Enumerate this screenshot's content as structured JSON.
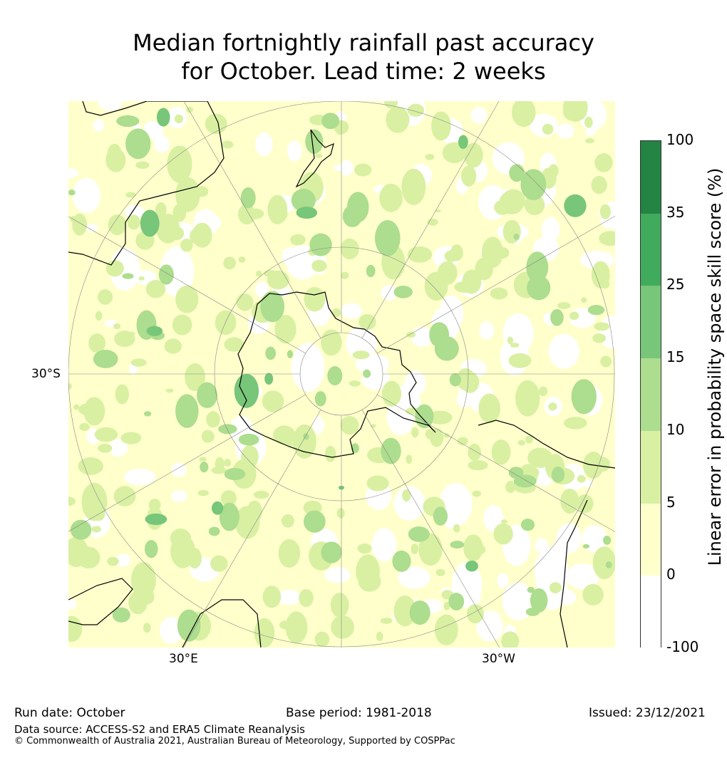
{
  "title": {
    "line1": "Median fortnightly rainfall past accuracy",
    "line2": "for October. Lead time: 2 weeks"
  },
  "map": {
    "labels": {
      "lat_30s": "30°S",
      "lon_30e": "30°E",
      "lon_30w": "30°W"
    },
    "projection": "south-polar-stereographic"
  },
  "colorbar": {
    "title": "Linear error in probability space skill score (%)",
    "ticks": [
      "-100",
      "0",
      "5",
      "10",
      "15",
      "25",
      "35",
      "100"
    ],
    "colors": [
      "#ffffff",
      "#ffffcc",
      "#d9f0a3",
      "#addd8e",
      "#78c679",
      "#41ab5d",
      "#238443"
    ]
  },
  "footer": {
    "run_date": "Run date: October",
    "base_period": "Base period: 1981-2018",
    "issued": "Issued: 23/12/2021",
    "data_source": "Data source: ACCESS-S2 and ERA5 Climate Reanalysis",
    "copyright": "© Commonwealth of Australia 2021, Australian Bureau of Meteorology, Supported by COSPPac"
  }
}
